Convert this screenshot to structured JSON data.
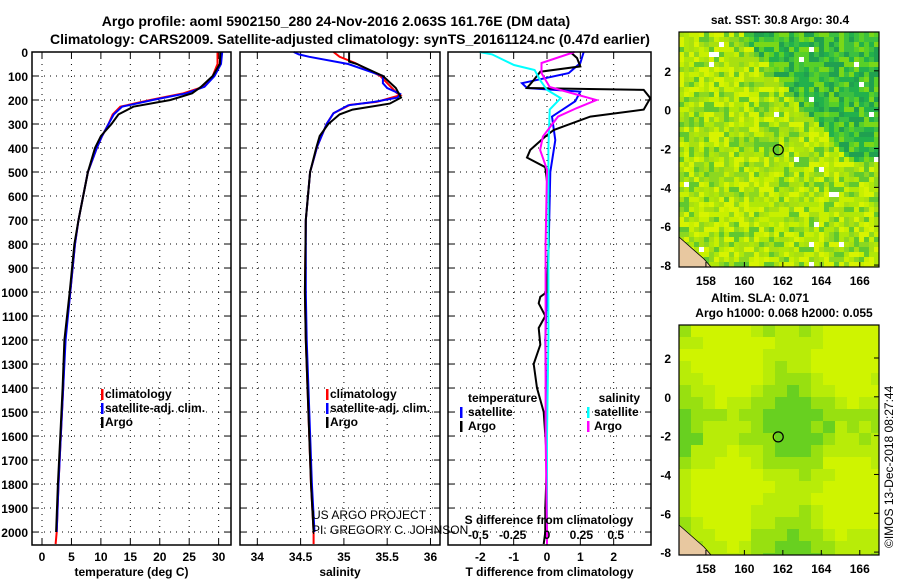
{
  "title_line1": "Argo profile: aoml 5902150_280 24-Nov-2016 2.063S 161.76E (DM data)",
  "title_line2": "Climatology: CARS2009. Satellite-adjusted climatology: synTS_20161124.nc (0.47d earlier)",
  "credit_line1": "US ARGO PROJECT",
  "credit_line2": "PI: GREGORY C. JOHNSON",
  "imos_stamp": "©IMOS 13-Dec-2018 08:27:44",
  "colors": {
    "climatology": "#ff0000",
    "satellite": "#0000ff",
    "argo": "#000000",
    "sal_satellite": "#00ffff",
    "sal_argo": "#ff00ff"
  },
  "chart_data": [
    {
      "type": "line",
      "id": "temperature",
      "xlabel": "temperature (deg C)",
      "ylabel": "",
      "xlim": [
        -1.7,
        32.1
      ],
      "ylim": [
        2054,
        0
      ],
      "xticks": [
        0,
        5,
        10,
        15,
        20,
        25,
        30
      ],
      "yticks": [
        0,
        100,
        200,
        300,
        400,
        500,
        600,
        700,
        800,
        900,
        1000,
        1100,
        1200,
        1300,
        1400,
        1500,
        1600,
        1700,
        1800,
        1900,
        2000
      ],
      "grid": true,
      "legend": {
        "placement": "middle-right",
        "entries": [
          "climatology",
          "satellite-adj. clim.",
          "Argo"
        ]
      },
      "series": [
        {
          "name": "climatology",
          "color": "#ff0000",
          "depth": [
            0,
            50,
            100,
            145,
            172,
            200,
            228,
            260,
            300,
            350,
            400,
            500,
            600,
            700,
            800,
            1000,
            1200,
            1400,
            1600,
            1800,
            2000,
            2050
          ],
          "values": [
            29.8,
            29.8,
            29.0,
            27.4,
            24.0,
            18.4,
            13.3,
            12.0,
            11.3,
            10.2,
            9.3,
            7.8,
            7.0,
            6.2,
            5.6,
            4.8,
            3.9,
            3.6,
            3.2,
            2.8,
            2.5,
            2.3
          ]
        },
        {
          "name": "satellite-adj. clim.",
          "color": "#0000ff",
          "depth": [
            0,
            50,
            100,
            145,
            172,
            200,
            228,
            260,
            300,
            350,
            400,
            500,
            600,
            700,
            800,
            1000,
            1200,
            1400,
            1600,
            1800,
            2000
          ],
          "values": [
            30.6,
            30.4,
            29.3,
            27.6,
            24.5,
            18.8,
            13.6,
            12.2,
            11.3,
            10.2,
            9.3,
            7.8,
            7.0,
            6.2,
            5.6,
            4.8,
            4.0,
            3.6,
            3.2,
            2.8,
            2.5
          ]
        },
        {
          "name": "Argo",
          "color": "#000000",
          "depth": [
            0,
            50,
            100,
            145,
            172,
            200,
            228,
            260,
            300,
            350,
            400,
            500,
            600,
            700,
            800,
            1000,
            1200,
            1400,
            1600,
            1800,
            2000
          ],
          "values": [
            30.3,
            30.2,
            29.0,
            27.0,
            25.5,
            21.8,
            15.5,
            13.0,
            11.8,
            10.0,
            9.0,
            7.8,
            7.0,
            6.2,
            5.5,
            4.7,
            3.8,
            3.5,
            3.1,
            2.7,
            2.4
          ]
        }
      ]
    },
    {
      "type": "line",
      "id": "salinity",
      "xlabel": "salinity",
      "ylabel": "",
      "xlim": [
        33.8,
        36.11
      ],
      "ylim": [
        2054,
        0
      ],
      "xticks": [
        34,
        34.5,
        35,
        35.5,
        36
      ],
      "xtick_labels": [
        "34",
        "34.5",
        "35",
        "35.5",
        "36"
      ],
      "grid": true,
      "legend": {
        "placement": "middle-right",
        "entries": [
          "climatology",
          "satellite-adj. clim.",
          "Argo"
        ]
      },
      "series": [
        {
          "name": "climatology",
          "color": "#ff0000",
          "depth": [
            0,
            20,
            46,
            100,
            171,
            180,
            208,
            220,
            255,
            300,
            395,
            500,
            700,
            1000,
            1200,
            1500,
            1800,
            2000,
            2050
          ],
          "values": [
            34.88,
            34.95,
            35.13,
            35.42,
            35.61,
            35.65,
            35.38,
            35.07,
            34.88,
            34.8,
            34.69,
            34.61,
            34.56,
            34.55,
            34.56,
            34.59,
            34.62,
            34.65,
            34.65
          ]
        },
        {
          "name": "satellite-adj. clim.",
          "color": "#0000ff",
          "depth": [
            0,
            10,
            20,
            50,
            100,
            130,
            150,
            175,
            190,
            208,
            222,
            255,
            300,
            395,
            500,
            700,
            1000,
            1200,
            1500,
            1800,
            2000
          ],
          "values": [
            34.42,
            34.48,
            34.6,
            35.05,
            35.45,
            35.45,
            35.5,
            35.65,
            35.62,
            35.35,
            35.05,
            34.88,
            34.8,
            34.69,
            34.61,
            34.56,
            34.56,
            34.57,
            34.6,
            34.63,
            34.66
          ]
        },
        {
          "name": "Argo",
          "color": "#000000",
          "depth": [
            0,
            40,
            50,
            100,
            150,
            190,
            215,
            240,
            260,
            300,
            350,
            400,
            500,
            700,
            1000,
            1200,
            1500,
            1800,
            2000
          ],
          "values": [
            35.06,
            35.06,
            35.15,
            35.45,
            35.6,
            35.66,
            35.53,
            35.1,
            34.95,
            34.82,
            34.72,
            34.68,
            34.61,
            34.56,
            34.55,
            34.56,
            34.59,
            34.62,
            34.65
          ]
        }
      ]
    },
    {
      "type": "line",
      "id": "difference",
      "xlabel": "T difference from climatology",
      "xlabel_top": "S difference from climatology",
      "xlim": [
        -2.97,
        3.12
      ],
      "ylim": [
        2054,
        0
      ],
      "xticks": [
        -2,
        -1,
        0,
        1,
        2
      ],
      "s_xticks": [
        -0.5,
        -0.25,
        0,
        0.25,
        0.5
      ],
      "s_xtick_labels": [
        "-0.5",
        "-0.25",
        "0",
        "0.25",
        "0.5"
      ],
      "grid": true,
      "legend": {
        "temperature_title": "temperature",
        "salinity_title": "salinity",
        "entries": [
          "satellite",
          "Argo"
        ]
      },
      "series": [
        {
          "name": "temperature satellite",
          "color": "#0000ff",
          "variable": "T",
          "depth": [
            0,
            46,
            88,
            130,
            150,
            165,
            205,
            269,
            367,
            500,
            800,
            1200,
            1600,
            2000,
            2050
          ],
          "values": [
            1.1,
            1.0,
            0.65,
            -0.75,
            -0.6,
            1.0,
            0.85,
            0.15,
            0.25,
            0.1,
            0.05,
            -0.05,
            0.0,
            0.0,
            0.0
          ]
        },
        {
          "name": "temperature Argo",
          "color": "#000000",
          "variable": "T",
          "depth": [
            0,
            25,
            60,
            82,
            117,
            150,
            158,
            192,
            240,
            269,
            325,
            352,
            408,
            440,
            480,
            600,
            800,
            1000,
            1020,
            1047,
            1100,
            1150,
            1220,
            1300,
            1400,
            1500,
            1700,
            1900,
            2000,
            2050
          ],
          "values": [
            0.7,
            0.9,
            1.0,
            -0.2,
            -0.4,
            -0.6,
            2.9,
            3.1,
            2.9,
            1.3,
            0.2,
            -0.05,
            -0.5,
            -0.6,
            -0.05,
            0.05,
            0.05,
            0.0,
            -0.2,
            -0.25,
            -0.05,
            -0.25,
            -0.2,
            -0.4,
            -0.3,
            -0.1,
            0.0,
            -0.05,
            -0.05,
            -0.1
          ]
        },
        {
          "name": "salinity satellite",
          "color": "#00ffff",
          "variable": "S",
          "depth": [
            0,
            10,
            54,
            75,
            117,
            158,
            192,
            240,
            400,
            800,
            1200,
            1600,
            2000,
            2050
          ],
          "values": [
            -0.49,
            -0.4,
            -0.24,
            -0.09,
            -0.05,
            0.0,
            0.1,
            0.02,
            0.01,
            0.01,
            0.01,
            0.0,
            0.0,
            0.0
          ]
        },
        {
          "name": "salinity Argo",
          "color": "#ff00ff",
          "variable": "S",
          "depth": [
            0,
            46,
            88,
            146,
            200,
            233,
            269,
            352,
            408,
            490,
            800,
            1200,
            1600,
            2000,
            2050
          ],
          "values": [
            0.2,
            -0.04,
            -0.04,
            0.02,
            0.36,
            0.22,
            0.08,
            -0.03,
            -0.05,
            0.0,
            -0.01,
            -0.01,
            -0.01,
            0.0,
            0.0
          ]
        }
      ]
    },
    {
      "type": "heatmap",
      "id": "sst-map",
      "title": "sat. SST: 30.8 Argo: 30.4",
      "xlim": [
        156.6,
        167.0
      ],
      "ylim": [
        -8.1,
        4.0
      ],
      "xticks": [
        158,
        160,
        162,
        164,
        166
      ],
      "yticks": [
        2,
        0,
        -2,
        -4,
        -6,
        -8
      ],
      "argo_position": {
        "lon": 161.76,
        "lat": -2.063
      }
    },
    {
      "type": "heatmap",
      "id": "sla-map",
      "title": "Altim. SLA: 0.071",
      "subtitle": "Argo h1000: 0.068 h2000: 0.055",
      "xlim": [
        156.6,
        167.0
      ],
      "ylim": [
        -8.15,
        3.7
      ],
      "xticks": [
        158,
        160,
        162,
        164,
        166
      ],
      "yticks": [
        2,
        0,
        -2,
        -4,
        -6,
        -8
      ],
      "argo_position": {
        "lon": 161.76,
        "lat": -2.063
      }
    }
  ]
}
